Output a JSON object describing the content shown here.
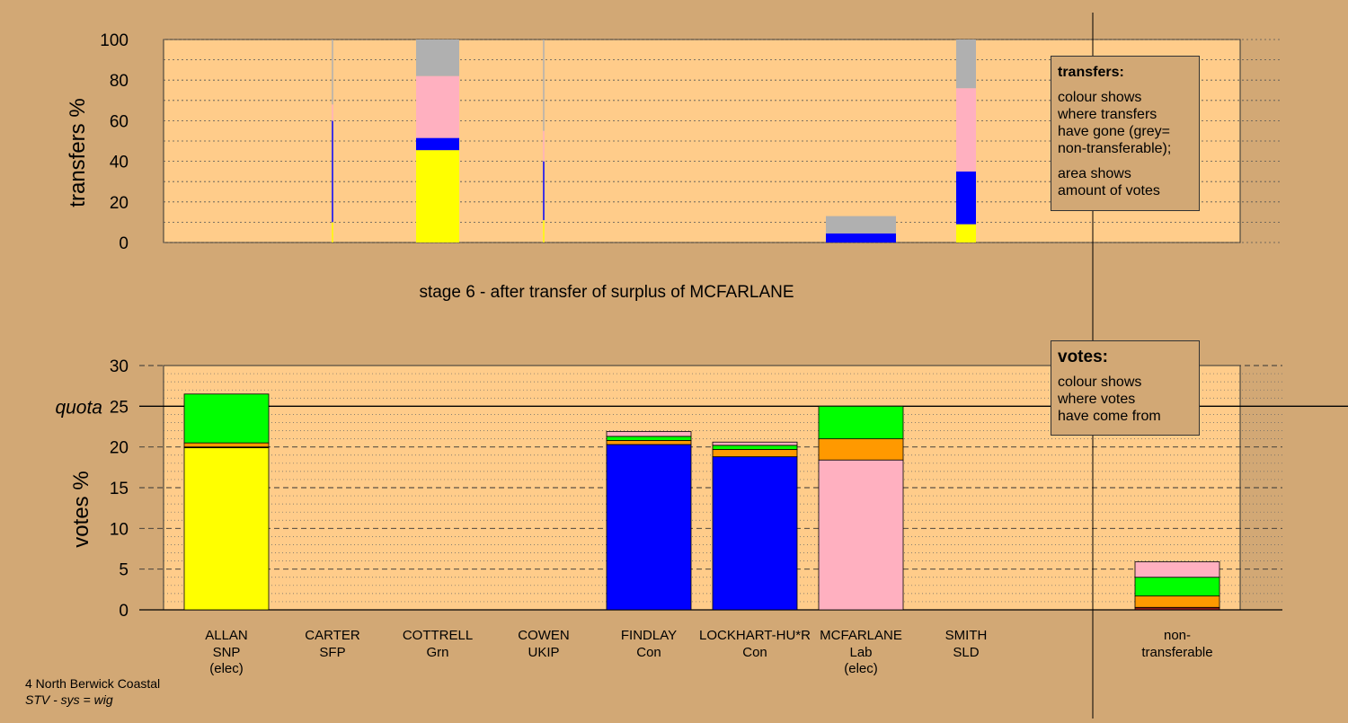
{
  "colors": {
    "background": "#D2A875",
    "plot_bg": "#FFCC8A",
    "SNP": "#FFFF00",
    "Con": "#0000FF",
    "Lab": "#FFB0C0",
    "Grn": "#00FF00",
    "SFP": "#FF9900",
    "UKIP": "#8B1A1A",
    "non_transferable": "#B0B0B0"
  },
  "stage_label": "stage 6 - after transfer of surplus of MCFARLANE",
  "footer": {
    "line1": "4 North Berwick Coastal",
    "line2": "STV - sys = wig"
  },
  "legend_transfers": {
    "title": "transfers:",
    "text1_lines": [
      "colour shows",
      "where transfers",
      "have gone (grey=",
      "non-transferable);"
    ],
    "text2_lines": [
      "area shows",
      "amount of votes"
    ]
  },
  "legend_votes": {
    "title": "votes:",
    "text_lines": [
      "colour shows",
      "where votes",
      "have come from"
    ]
  },
  "chart_data": [
    {
      "type": "bar",
      "ylabel": "transfers %",
      "ylim": [
        0,
        100
      ],
      "yticks": [
        "0",
        "20",
        "40",
        "60",
        "80",
        "100"
      ],
      "grid": true,
      "columns": [
        {
          "candidate": "CARTER",
          "segments": [
            {
              "to": "SNP",
              "from": 0,
              "to_value": 10
            },
            {
              "to": "Con",
              "from": 10,
              "to_value": 60
            },
            {
              "to": "Lab",
              "from": 60,
              "to_value": 68
            },
            {
              "to": "non_transferable",
              "from": 68,
              "to_value": 100
            }
          ]
        },
        {
          "candidate": "COTTRELL",
          "segments": [
            {
              "to": "SNP",
              "from": 0,
              "to_value": 45.5
            },
            {
              "to": "Con",
              "from": 45.5,
              "to_value": 51.5
            },
            {
              "to": "Lab",
              "from": 51.5,
              "to_value": 82
            },
            {
              "to": "non_transferable",
              "from": 82,
              "to_value": 100
            }
          ]
        },
        {
          "candidate": "COWEN",
          "segments": [
            {
              "to": "SNP",
              "from": 0,
              "to_value": 11
            },
            {
              "to": "Con",
              "from": 11,
              "to_value": 40
            },
            {
              "to": "Lab",
              "from": 40,
              "to_value": 55
            },
            {
              "to": "non_transferable",
              "from": 55,
              "to_value": 100
            }
          ]
        },
        {
          "candidate": "MCFARLANE",
          "segments": [
            {
              "to": "Con",
              "from": 0,
              "to_value": 4.5
            },
            {
              "to": "non_transferable",
              "from": 4.5,
              "to_value": 13
            }
          ]
        },
        {
          "candidate": "SMITH",
          "segments": [
            {
              "to": "SNP",
              "from": 0,
              "to_value": 9
            },
            {
              "to": "Con",
              "from": 9,
              "to_value": 35
            },
            {
              "to": "Lab",
              "from": 35,
              "to_value": 76
            },
            {
              "to": "non_transferable",
              "from": 76,
              "to_value": 100
            }
          ]
        }
      ]
    },
    {
      "type": "bar",
      "ylabel": "votes %",
      "ylim": [
        0,
        30
      ],
      "yticks": [
        "0",
        "5",
        "10",
        "15",
        "20",
        "25",
        "30"
      ],
      "quota": {
        "label": "quota",
        "value": 25
      },
      "grid": true,
      "categories": [
        {
          "name": "ALLAN",
          "party": "SNP",
          "note": "(elec)"
        },
        {
          "name": "CARTER",
          "party": "SFP",
          "note": ""
        },
        {
          "name": "COTTRELL",
          "party": "Grn",
          "note": ""
        },
        {
          "name": "COWEN",
          "party": "UKIP",
          "note": ""
        },
        {
          "name": "FINDLAY",
          "party": "Con",
          "note": ""
        },
        {
          "name": "LOCKHART-HU*R",
          "party": "Con",
          "note": ""
        },
        {
          "name": "MCFARLANE",
          "party": "Lab",
          "note": "(elec)"
        },
        {
          "name": "SMITH",
          "party": "SLD",
          "note": ""
        },
        {
          "name": "non-",
          "party": "transferable",
          "note": ""
        }
      ],
      "stacks": [
        [
          {
            "from": "SNP",
            "value": 19.9
          },
          {
            "from": "UKIP",
            "value": 0.1
          },
          {
            "from": "SFP",
            "value": 0.5
          },
          {
            "from": "Grn",
            "value": 6.0
          }
        ],
        [],
        [],
        [],
        [
          {
            "from": "Con",
            "value": 20.3
          },
          {
            "from": "SFP",
            "value": 0.5
          },
          {
            "from": "Grn",
            "value": 0.5
          },
          {
            "from": "Lab",
            "value": 0.6
          }
        ],
        [
          {
            "from": "Con",
            "value": 18.8
          },
          {
            "from": "SFP",
            "value": 0.9
          },
          {
            "from": "Grn",
            "value": 0.5
          },
          {
            "from": "Lab",
            "value": 0.4
          }
        ],
        [
          {
            "from": "Lab",
            "value": 18.4
          },
          {
            "from": "SFP",
            "value": 2.6
          },
          {
            "from": "Grn",
            "value": 4.0
          }
        ],
        [],
        [
          {
            "from": "UKIP",
            "value": 0.3
          },
          {
            "from": "SFP",
            "value": 1.4
          },
          {
            "from": "Grn",
            "value": 2.3
          },
          {
            "from": "Lab",
            "value": 1.9
          }
        ]
      ]
    }
  ]
}
